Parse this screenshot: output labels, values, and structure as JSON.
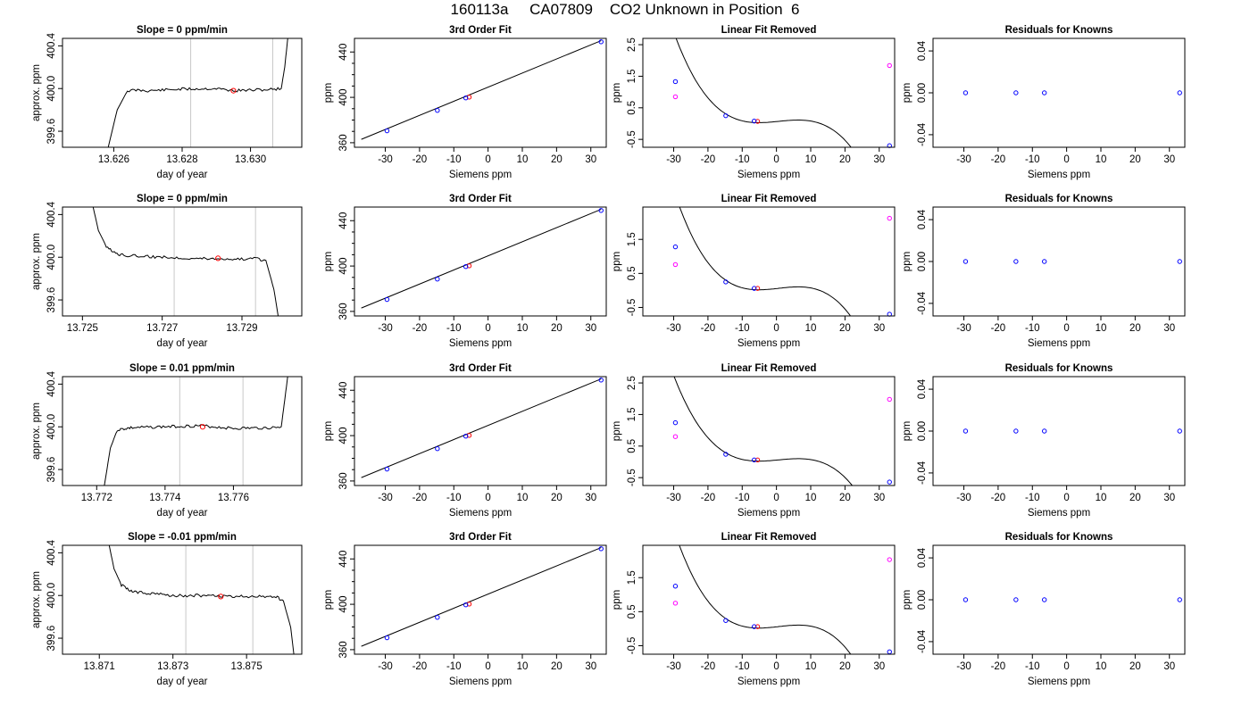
{
  "figure": {
    "title": "160113a     CA07809    CO2 Unknown in Position  6",
    "colors": {
      "line": "#000000",
      "grid": "#c8c8c8",
      "known": "#0000ff",
      "unknown_resid": "#ff00ff",
      "current": "#ff0000"
    }
  },
  "chart_data": [
    {
      "type": "line",
      "panel": "row1-slope",
      "title": "Slope =  0  ppm/min",
      "xlabel": "day of year",
      "ylabel": "approx. ppm",
      "xlim": [
        13.6245,
        13.6315
      ],
      "ylim": [
        399.45,
        400.47
      ],
      "xticks": [
        13.626,
        13.628,
        13.63
      ],
      "xticklabels": [
        "13.626",
        "13.628",
        "13.630"
      ],
      "yticks": [
        399.6,
        400.0,
        400.4
      ],
      "yticklabels": [
        "399.6",
        "400.0",
        "400.4"
      ],
      "vlines": [
        13.62825,
        13.63065
      ],
      "trace": {
        "x": [
          13.6258,
          13.6261,
          13.6264,
          13.6267,
          13.627,
          13.628,
          13.629,
          13.6295,
          13.6305,
          13.6309,
          13.631,
          13.6311
        ],
        "y": [
          399.4,
          399.8,
          399.98,
          399.985,
          399.98,
          399.995,
          400.0,
          399.98,
          399.99,
          400.0,
          400.2,
          400.5
        ]
      },
      "marker": {
        "x": 13.6295,
        "y": 399.98
      }
    },
    {
      "type": "scatter",
      "panel": "row1-fit",
      "title": "3rd Order Fit",
      "xlabel": "Siemens ppm",
      "ylabel": "ppm",
      "xlim": [
        -39,
        34.5
      ],
      "ylim": [
        356,
        452
      ],
      "xticks": [
        -30,
        -20,
        -10,
        0,
        10,
        20,
        30
      ],
      "xticklabels": [
        "-30",
        "-20",
        "-10",
        "0",
        "10",
        "20",
        "30"
      ],
      "yticks": [
        360,
        400,
        440
      ],
      "yticklabels": [
        "360",
        "400",
        "440"
      ],
      "fit_line": {
        "x": [
          -37,
          33
        ],
        "y": [
          363,
          450
        ]
      },
      "points_known": {
        "x": [
          -29.5,
          -14.8,
          -6.5,
          33
        ],
        "y": [
          370.5,
          388.5,
          399.5,
          449
        ]
      },
      "points_current": {
        "x": [
          -5.5
        ],
        "y": [
          400.2
        ]
      }
    },
    {
      "type": "scatter",
      "panel": "row1-linres",
      "title": "Linear Fit Removed",
      "xlabel": "Siemens ppm",
      "ylabel": "ppm",
      "xlim": [
        -39,
        34.5
      ],
      "ylim": [
        -0.75,
        2.7
      ],
      "xticks": [
        -30,
        -20,
        -10,
        0,
        10,
        20,
        30
      ],
      "xticklabels": [
        "-30",
        "-20",
        "-10",
        "0",
        "10",
        "20",
        "30"
      ],
      "yticks": [
        -0.5,
        0.5,
        1.5,
        2.5
      ],
      "yticklabels": [
        "-0.5",
        "0.5",
        "1.5",
        "2.5"
      ],
      "curve": {
        "a": -0.0001105,
        "b": 0.0002,
        "c": 0.0107,
        "d": 0.064,
        "x0": -37,
        "x1": 33
      },
      "points_known": {
        "x": [
          -29.5,
          -14.8,
          -6.5,
          33
        ],
        "y": [
          1.33,
          0.25,
          0.08,
          -0.7
        ]
      },
      "points_unknown": {
        "x": [
          -29.5,
          33
        ],
        "y": [
          0.85,
          1.84
        ]
      },
      "points_current": {
        "x": [
          -5.5
        ],
        "y": [
          0.07
        ]
      }
    },
    {
      "type": "scatter",
      "panel": "row1-resid",
      "title": "Residuals for Knowns",
      "xlabel": "Siemens ppm",
      "ylabel": "ppm",
      "xlim": [
        -39,
        34.5
      ],
      "ylim": [
        -0.052,
        0.052
      ],
      "xticks": [
        -30,
        -20,
        -10,
        0,
        10,
        20,
        30
      ],
      "xticklabels": [
        "-30",
        "-20",
        "-10",
        "0",
        "10",
        "20",
        "30"
      ],
      "yticks": [
        -0.04,
        0.0,
        0.04
      ],
      "yticklabels": [
        "-0.04",
        "0.00",
        "0.04"
      ],
      "points_known": {
        "x": [
          -29.5,
          -14.8,
          -6.5,
          33
        ],
        "y": [
          0,
          0,
          0,
          0
        ]
      }
    },
    {
      "type": "line",
      "panel": "row2-slope",
      "title": "Slope =  0  ppm/min",
      "xlabel": "day of year",
      "ylabel": "approx. ppm",
      "xlim": [
        13.7245,
        13.7305
      ],
      "ylim": [
        399.45,
        400.47
      ],
      "xticks": [
        13.725,
        13.727,
        13.729
      ],
      "xticklabels": [
        "13.725",
        "13.727",
        "13.729"
      ],
      "yticks": [
        399.6,
        400.0,
        400.4
      ],
      "yticklabels": [
        "399.6",
        "400.0",
        "400.4"
      ],
      "vlines": [
        13.7273,
        13.72934
      ],
      "trace": {
        "x": [
          13.72525,
          13.7254,
          13.7256,
          13.7258,
          13.726,
          13.727,
          13.728,
          13.7289,
          13.72935,
          13.7296,
          13.7298,
          13.72995
        ],
        "y": [
          400.5,
          400.25,
          400.1,
          400.04,
          400.02,
          400.0,
          399.99,
          399.985,
          399.985,
          399.97,
          399.7,
          399.35
        ]
      },
      "marker": {
        "x": 13.7284,
        "y": 399.99
      }
    },
    {
      "type": "scatter",
      "panel": "row2-fit",
      "title": "3rd Order Fit",
      "xlabel": "Siemens ppm",
      "ylabel": "ppm",
      "xlim": [
        -39,
        34.5
      ],
      "ylim": [
        356,
        452
      ],
      "xticks": [
        -30,
        -20,
        -10,
        0,
        10,
        20,
        30
      ],
      "xticklabels": [
        "-30",
        "-20",
        "-10",
        "0",
        "10",
        "20",
        "30"
      ],
      "yticks": [
        360,
        400,
        440
      ],
      "yticklabels": [
        "360",
        "400",
        "440"
      ],
      "fit_line": {
        "x": [
          -37,
          33
        ],
        "y": [
          363,
          450
        ]
      },
      "points_known": {
        "x": [
          -29.5,
          -14.8,
          -6.5,
          33
        ],
        "y": [
          370.5,
          388.5,
          399.5,
          449
        ]
      },
      "points_current": {
        "x": [
          -5.5
        ],
        "y": [
          400.2
        ]
      }
    },
    {
      "type": "scatter",
      "panel": "row2-linres",
      "title": "Linear Fit Removed",
      "xlabel": "Siemens ppm",
      "ylabel": "ppm",
      "xlim": [
        -39,
        34.5
      ],
      "ylim": [
        -0.75,
        2.45
      ],
      "xticks": [
        -30,
        -20,
        -10,
        0,
        10,
        20,
        30
      ],
      "xticklabels": [
        "-30",
        "-20",
        "-10",
        "0",
        "10",
        "20",
        "30"
      ],
      "yticks": [
        -0.5,
        0.5,
        1.5
      ],
      "yticklabels": [
        "-0.5",
        "0.5",
        "1.5"
      ],
      "curve": {
        "a": -0.000113,
        "b": 0.0002,
        "c": 0.0111,
        "d": 0.055,
        "x0": -37,
        "x1": 33
      },
      "points_known": {
        "x": [
          -29.5,
          -14.8,
          -6.5,
          33
        ],
        "y": [
          1.28,
          0.25,
          0.06,
          -0.7
        ]
      },
      "points_unknown": {
        "x": [
          -29.5,
          33
        ],
        "y": [
          0.76,
          2.12
        ]
      },
      "points_current": {
        "x": [
          -5.5
        ],
        "y": [
          0.06
        ]
      }
    },
    {
      "type": "scatter",
      "panel": "row2-resid",
      "title": "Residuals for Knowns",
      "xlabel": "Siemens ppm",
      "ylabel": "ppm",
      "xlim": [
        -39,
        34.5
      ],
      "ylim": [
        -0.052,
        0.052
      ],
      "xticks": [
        -30,
        -20,
        -10,
        0,
        10,
        20,
        30
      ],
      "xticklabels": [
        "-30",
        "-20",
        "-10",
        "0",
        "10",
        "20",
        "30"
      ],
      "yticks": [
        -0.04,
        0.0,
        0.04
      ],
      "yticklabels": [
        "-0.04",
        "0.00",
        "0.04"
      ],
      "points_known": {
        "x": [
          -29.5,
          -14.8,
          -6.5,
          33
        ],
        "y": [
          0,
          0,
          0,
          0
        ]
      }
    },
    {
      "type": "line",
      "panel": "row3-slope",
      "title": "Slope =  0.01  ppm/min",
      "xlabel": "day of year",
      "ylabel": "approx. ppm",
      "xlim": [
        13.771,
        13.778
      ],
      "ylim": [
        399.45,
        400.47
      ],
      "xticks": [
        13.772,
        13.774,
        13.776
      ],
      "xticklabels": [
        "13.772",
        "13.774",
        "13.776"
      ],
      "yticks": [
        399.6,
        400.0,
        400.4
      ],
      "yticklabels": [
        "399.6",
        "400.0",
        "400.4"
      ],
      "vlines": [
        13.77443,
        13.77628
      ],
      "trace": {
        "x": [
          13.7722,
          13.7724,
          13.7726,
          13.7728,
          13.773,
          13.774,
          13.775,
          13.776,
          13.7771,
          13.7774,
          13.7775,
          13.7776
        ],
        "y": [
          399.4,
          399.8,
          399.97,
          399.98,
          399.99,
          400.0,
          400.01,
          399.985,
          399.99,
          400.0,
          400.25,
          400.5
        ]
      },
      "marker": {
        "x": 13.7751,
        "y": 400.0
      }
    },
    {
      "type": "scatter",
      "panel": "row3-fit",
      "title": "3rd Order Fit",
      "xlabel": "Siemens ppm",
      "ylabel": "ppm",
      "xlim": [
        -39,
        34.5
      ],
      "ylim": [
        356,
        452
      ],
      "xticks": [
        -30,
        -20,
        -10,
        0,
        10,
        20,
        30
      ],
      "xticklabels": [
        "-30",
        "-20",
        "-10",
        "0",
        "10",
        "20",
        "30"
      ],
      "yticks": [
        360,
        400,
        440
      ],
      "yticklabels": [
        "360",
        "400",
        "440"
      ],
      "fit_line": {
        "x": [
          -37,
          33
        ],
        "y": [
          363,
          450
        ]
      },
      "points_known": {
        "x": [
          -29.5,
          -14.8,
          -6.5,
          33
        ],
        "y": [
          370.5,
          388.5,
          399.5,
          449
        ]
      },
      "points_current": {
        "x": [
          -5.5
        ],
        "y": [
          400.2
        ]
      }
    },
    {
      "type": "scatter",
      "panel": "row3-linres",
      "title": "Linear Fit Removed",
      "xlabel": "Siemens ppm",
      "ylabel": "ppm",
      "xlim": [
        -39,
        34.5
      ],
      "ylim": [
        -0.75,
        2.7
      ],
      "xticks": [
        -30,
        -20,
        -10,
        0,
        10,
        20,
        30
      ],
      "xticklabels": [
        "-30",
        "-20",
        "-10",
        "0",
        "10",
        "20",
        "30"
      ],
      "yticks": [
        -0.5,
        0.5,
        1.5,
        2.5
      ],
      "yticklabels": [
        "-0.5",
        "0.5",
        "1.5",
        "2.5"
      ],
      "curve": {
        "a": -0.000104,
        "b": 0.0002,
        "c": 0.0101,
        "d": 0.055,
        "x0": -37,
        "x1": 33
      },
      "points_known": {
        "x": [
          -29.5,
          -14.8,
          -6.5,
          33
        ],
        "y": [
          1.24,
          0.24,
          0.06,
          -0.64
        ]
      },
      "points_unknown": {
        "x": [
          -29.5,
          33
        ],
        "y": [
          0.8,
          1.98
        ]
      },
      "points_current": {
        "x": [
          -5.5
        ],
        "y": [
          0.06
        ]
      }
    },
    {
      "type": "scatter",
      "panel": "row3-resid",
      "title": "Residuals for Knowns",
      "xlabel": "Siemens ppm",
      "ylabel": "ppm",
      "xlim": [
        -39,
        34.5
      ],
      "ylim": [
        -0.052,
        0.052
      ],
      "xticks": [
        -30,
        -20,
        -10,
        0,
        10,
        20,
        30
      ],
      "xticklabels": [
        "-30",
        "-20",
        "-10",
        "0",
        "10",
        "20",
        "30"
      ],
      "yticks": [
        -0.04,
        0.0,
        0.04
      ],
      "yticklabels": [
        "-0.04",
        "0.00",
        "0.04"
      ],
      "points_known": {
        "x": [
          -29.5,
          -14.8,
          -6.5,
          33
        ],
        "y": [
          0,
          0,
          0,
          0
        ]
      }
    },
    {
      "type": "line",
      "panel": "row4-slope",
      "title": "Slope =  -0.01  ppm/min",
      "xlabel": "day of year",
      "ylabel": "approx. ppm",
      "xlim": [
        13.87,
        13.8765
      ],
      "ylim": [
        399.45,
        400.47
      ],
      "xticks": [
        13.871,
        13.873,
        13.875
      ],
      "xticklabels": [
        "13.871",
        "13.873",
        "13.875"
      ],
      "yticks": [
        399.6,
        400.0,
        400.4
      ],
      "yticklabels": [
        "399.6",
        "400.0",
        "400.4"
      ],
      "vlines": [
        13.87335,
        13.87517
      ],
      "trace": {
        "x": [
          13.87125,
          13.8714,
          13.8716,
          13.8718,
          13.872,
          13.873,
          13.874,
          13.875,
          13.8758,
          13.876,
          13.8762,
          13.8763
        ],
        "y": [
          400.5,
          400.25,
          400.1,
          400.05,
          400.03,
          400.0,
          400.0,
          399.99,
          399.99,
          399.95,
          399.7,
          399.4
        ]
      },
      "marker": {
        "x": 13.8743,
        "y": 399.99
      }
    },
    {
      "type": "scatter",
      "panel": "row4-fit",
      "title": "3rd Order Fit",
      "xlabel": "Siemens ppm",
      "ylabel": "ppm",
      "xlim": [
        -39,
        34.5
      ],
      "ylim": [
        356,
        452
      ],
      "xticks": [
        -30,
        -20,
        -10,
        0,
        10,
        20,
        30
      ],
      "xticklabels": [
        "-30",
        "-20",
        "-10",
        "0",
        "10",
        "20",
        "30"
      ],
      "yticks": [
        360,
        400,
        440
      ],
      "yticklabels": [
        "360",
        "400",
        "440"
      ],
      "fit_line": {
        "x": [
          -37,
          33
        ],
        "y": [
          363,
          450
        ]
      },
      "points_known": {
        "x": [
          -29.5,
          -14.8,
          -6.5,
          33
        ],
        "y": [
          370.5,
          388.5,
          399.5,
          449
        ]
      },
      "points_current": {
        "x": [
          -5.5
        ],
        "y": [
          400.2
        ]
      }
    },
    {
      "type": "scatter",
      "panel": "row4-linres",
      "title": "Linear Fit Removed",
      "xlabel": "Siemens ppm",
      "ylabel": "ppm",
      "xlim": [
        -39,
        34.5
      ],
      "ylim": [
        -0.75,
        2.45
      ],
      "xticks": [
        -30,
        -20,
        -10,
        0,
        10,
        20,
        30
      ],
      "xticklabels": [
        "-30",
        "-20",
        "-10",
        "0",
        "10",
        "20",
        "30"
      ],
      "yticks": [
        -0.5,
        0.5,
        1.5
      ],
      "yticklabels": [
        "-0.5",
        "0.5",
        "1.5"
      ],
      "curve": {
        "a": -0.000112,
        "b": 0.0002,
        "c": 0.0111,
        "d": 0.055,
        "x0": -37,
        "x1": 33
      },
      "points_known": {
        "x": [
          -29.5,
          -14.8,
          -6.5,
          33
        ],
        "y": [
          1.25,
          0.24,
          0.06,
          -0.68
        ]
      },
      "points_unknown": {
        "x": [
          -29.5,
          33
        ],
        "y": [
          0.75,
          2.03
        ]
      },
      "points_current": {
        "x": [
          -5.5
        ],
        "y": [
          0.06
        ]
      }
    },
    {
      "type": "scatter",
      "panel": "row4-resid",
      "title": "Residuals for Knowns",
      "xlabel": "Siemens ppm",
      "ylabel": "ppm",
      "xlim": [
        -39,
        34.5
      ],
      "ylim": [
        -0.052,
        0.052
      ],
      "xticks": [
        -30,
        -20,
        -10,
        0,
        10,
        20,
        30
      ],
      "xticklabels": [
        "-30",
        "-20",
        "-10",
        "0",
        "10",
        "20",
        "30"
      ],
      "yticks": [
        -0.04,
        0.0,
        0.04
      ],
      "yticklabels": [
        "-0.04",
        "0.00",
        "0.04"
      ],
      "points_known": {
        "x": [
          -29.5,
          -14.8,
          -6.5,
          33
        ],
        "y": [
          0,
          0,
          0,
          0
        ]
      }
    }
  ]
}
